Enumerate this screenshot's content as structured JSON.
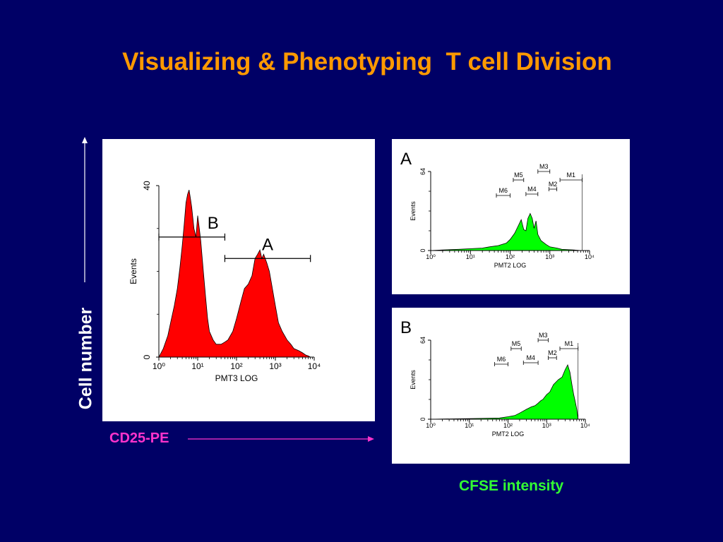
{
  "title": "Visualizing & Phenotyping  T cell Division",
  "y_label": "Cell number",
  "x_label_left": "CD25-PE",
  "x_label_right": "CFSE intensity",
  "colors": {
    "background": "#000066",
    "title": "#ff9900",
    "cd25_label": "#ff33cc",
    "cfse_label": "#33ff33",
    "red_fill": "#ff0000",
    "green_fill": "#00ff00"
  },
  "chart_data": [
    {
      "type": "area",
      "panel": "main",
      "xlabel": "PMT3 LOG",
      "ylabel": "Events",
      "xscale": "log",
      "xlim": [
        1,
        10000
      ],
      "ylim": [
        0,
        40
      ],
      "x_ticks": [
        "10⁰",
        "10¹",
        "10²",
        "10³",
        "10⁴"
      ],
      "y_ticks": [
        "0",
        "40"
      ],
      "gates": [
        {
          "label": "B",
          "range": [
            1,
            50
          ],
          "level": 28
        },
        {
          "label": "A",
          "range": [
            50,
            8000
          ],
          "level": 23
        }
      ],
      "series": [
        {
          "x": [
            1,
            1.3,
            1.7,
            2,
            2.5,
            3,
            3.5,
            4,
            4.5,
            5,
            5.5,
            6,
            6.5,
            7,
            8,
            9,
            10,
            11,
            12,
            14,
            16,
            18,
            20,
            25,
            30,
            40,
            50,
            60,
            80,
            100,
            130,
            160,
            200,
            250,
            300,
            350,
            400,
            450,
            500,
            600,
            700,
            800,
            1000,
            1200,
            1500,
            2000,
            2500,
            3000,
            4000,
            5000,
            6000,
            7000,
            8000,
            10000
          ],
          "values": [
            0,
            2,
            5,
            8,
            12,
            16,
            21,
            26,
            31,
            36,
            38,
            39,
            37,
            35,
            30,
            28,
            33,
            30,
            27,
            20,
            14,
            9,
            6,
            4,
            3,
            3,
            3.5,
            4,
            6,
            9,
            13,
            16,
            17,
            19,
            23,
            24,
            25,
            23,
            24,
            22,
            20,
            17,
            12,
            8,
            6,
            4,
            3,
            2,
            1.5,
            1,
            0.5,
            0.3,
            0,
            0
          ]
        }
      ]
    },
    {
      "type": "area",
      "panel": "A",
      "panel_label": "A",
      "xlabel": "PMT2 LOG",
      "ylabel": "Events",
      "xscale": "log",
      "xlim": [
        1,
        10000
      ],
      "ylim": [
        0,
        64
      ],
      "x_ticks": [
        "10⁰",
        "10¹",
        "10²",
        "10³",
        "10⁴"
      ],
      "y_ticks": [
        "0",
        "64"
      ],
      "markers": [
        {
          "label": "M1",
          "range": [
            1800,
            6500
          ]
        },
        {
          "label": "M2",
          "range": [
            950,
            1500
          ]
        },
        {
          "label": "M3",
          "range": [
            500,
            1000
          ]
        },
        {
          "label": "M4",
          "range": [
            250,
            500
          ]
        },
        {
          "label": "M5",
          "range": [
            120,
            220
          ]
        },
        {
          "label": "M6",
          "range": [
            45,
            100
          ]
        }
      ],
      "series": [
        {
          "x": [
            1,
            2,
            5,
            10,
            20,
            30,
            50,
            80,
            100,
            130,
            160,
            190,
            220,
            250,
            280,
            320,
            360,
            400,
            450,
            500,
            600,
            800,
            1000,
            1500,
            2000,
            4000,
            6000,
            10000
          ],
          "values": [
            0,
            0.5,
            1,
            1.5,
            2,
            3,
            4,
            6,
            9,
            14,
            20,
            25,
            17,
            16,
            26,
            30,
            26,
            18,
            24,
            13,
            8,
            5,
            3,
            2,
            1,
            0.5,
            0,
            0
          ]
        }
      ]
    },
    {
      "type": "area",
      "panel": "B",
      "panel_label": "B",
      "xlabel": "PMT2 LOG",
      "ylabel": "Events",
      "xscale": "log",
      "xlim": [
        1,
        10000
      ],
      "ylim": [
        0,
        64
      ],
      "x_ticks": [
        "10⁰",
        "10¹",
        "10²",
        "10³",
        "10⁴"
      ],
      "y_ticks": [
        "0",
        "64"
      ],
      "markers": [
        {
          "label": "M1",
          "range": [
            2200,
            6500
          ]
        },
        {
          "label": "M2",
          "range": [
            1100,
            1800
          ]
        },
        {
          "label": "M3",
          "range": [
            600,
            1100
          ]
        },
        {
          "label": "M4",
          "range": [
            250,
            600
          ]
        },
        {
          "label": "M5",
          "range": [
            120,
            220
          ]
        },
        {
          "label": "M6",
          "range": [
            45,
            100
          ]
        }
      ],
      "series": [
        {
          "x": [
            1,
            10,
            30,
            60,
            100,
            150,
            200,
            300,
            400,
            500,
            600,
            700,
            800,
            1000,
            1200,
            1500,
            2000,
            2500,
            3000,
            3500,
            4000,
            4500,
            5000,
            5500,
            6000,
            6500,
            10000
          ],
          "values": [
            0,
            0.5,
            0.8,
            1,
            2,
            3,
            5,
            8,
            10,
            11,
            13,
            15,
            16,
            20,
            22,
            28,
            32,
            34,
            40,
            44,
            38,
            28,
            20,
            14,
            8,
            0,
            0
          ]
        }
      ]
    }
  ]
}
